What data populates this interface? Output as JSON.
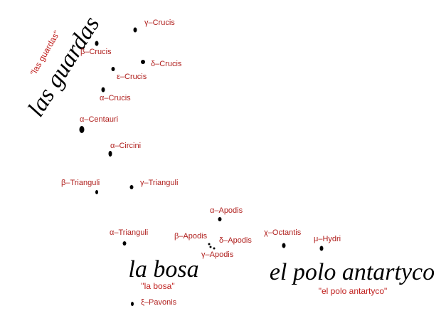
{
  "stars": [
    {
      "label": "γ–Crucis"
    },
    {
      "label": "β–Crucis"
    },
    {
      "label": "δ–Crucis"
    },
    {
      "label": "ε–Crucis"
    },
    {
      "label": "α–Crucis"
    },
    {
      "label": "α–Centauri"
    },
    {
      "label": "α–Circini"
    },
    {
      "label": "β–Trianguli"
    },
    {
      "label": "γ–Trianguli"
    },
    {
      "label": "α–Trianguli"
    },
    {
      "label": "α–Apodis"
    },
    {
      "label": "β–Apodis"
    },
    {
      "label": "δ–Apodis"
    },
    {
      "label": "γ–Apodis"
    },
    {
      "label": "χ–Octantis"
    },
    {
      "label": "μ–Hydri"
    },
    {
      "label": "ξ–Pavonis"
    }
  ],
  "annotations": [
    {
      "script": "las guardas",
      "translation": "\"las guardas\""
    },
    {
      "script": "la bosa",
      "translation": "\"la bosa\""
    },
    {
      "script": "el polo antartyco",
      "translation": "\"el polo antartyco\""
    }
  ]
}
